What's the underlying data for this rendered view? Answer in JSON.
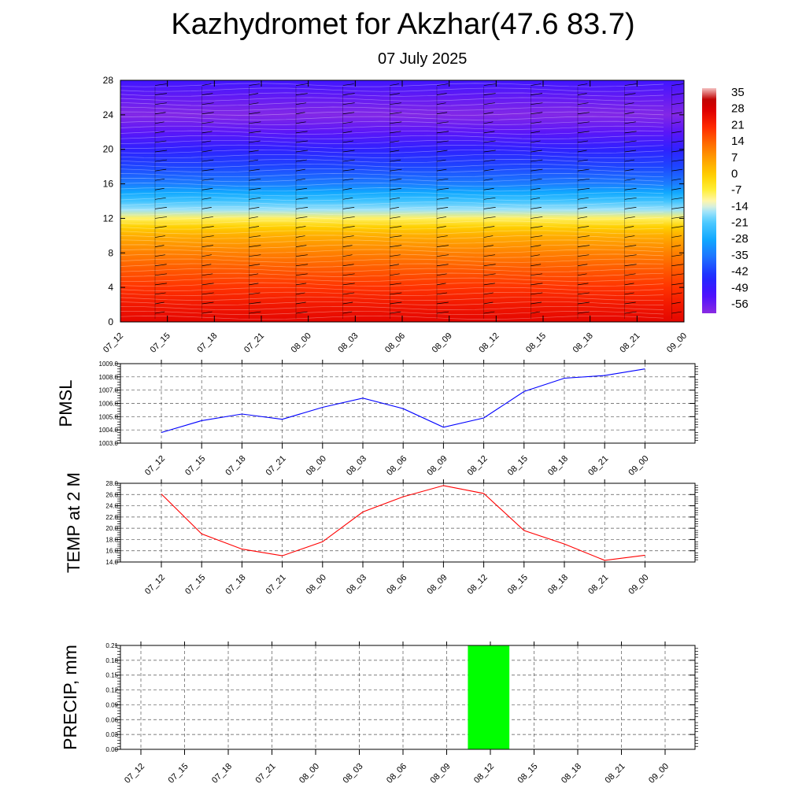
{
  "header": {
    "title": "Kazhydromet for Akzhar(47.6 83.7)",
    "subtitle": "07 July 2025"
  },
  "chart_data": [
    {
      "type": "heatmap",
      "name": "temperature-cross-section",
      "x": [
        "07_12",
        "07_15",
        "07_18",
        "07_21",
        "08_00",
        "08_03",
        "08_06",
        "08_09",
        "08_12",
        "08_15",
        "08_18",
        "08_21",
        "09_00"
      ],
      "y_ticks": [
        "0",
        "4",
        "8",
        "12",
        "16",
        "20",
        "24",
        "28"
      ],
      "ylim": [
        0,
        28
      ],
      "colorbar": {
        "labels": [
          "35",
          "28",
          "21",
          "14",
          "7",
          "0",
          "-7",
          "-14",
          "-21",
          "-28",
          "-35",
          "-42",
          "-49",
          "-56"
        ],
        "range": [
          -60,
          38
        ]
      },
      "temperature_profile": {
        "levels": [
          0,
          2,
          4,
          6,
          8,
          10,
          11,
          12,
          13,
          14,
          15,
          16,
          18,
          20,
          22,
          24,
          26,
          28
        ],
        "values": [
          27,
          24,
          20,
          16,
          11,
          5,
          0,
          -8,
          -16,
          -22,
          -28,
          -34,
          -41,
          -47,
          -54,
          -59,
          -55,
          -50
        ]
      },
      "wind_barbs": true
    },
    {
      "type": "line",
      "name": "pmsl",
      "ylabel": "PMSL",
      "categories": [
        "07_12",
        "07_15",
        "07_18",
        "07_21",
        "08_00",
        "08_03",
        "08_06",
        "08_09",
        "08_12",
        "08_15",
        "08_18",
        "08_21",
        "09_00"
      ],
      "y_ticks": [
        "1003.0",
        "1004.0",
        "1005.0",
        "1006.0",
        "1007.0",
        "1008.0",
        "1009.0"
      ],
      "ylim": [
        1003.0,
        1009.0
      ],
      "values": [
        1003.8,
        1004.7,
        1005.2,
        1004.8,
        1005.7,
        1006.4,
        1005.6,
        1004.2,
        1004.9,
        1006.9,
        1007.9,
        1008.1,
        1008.6
      ],
      "color": "#0000ff",
      "grid": true
    },
    {
      "type": "line",
      "name": "temp-2m",
      "ylabel": "TEMP at 2 M",
      "categories": [
        "07_12",
        "07_15",
        "07_18",
        "07_21",
        "08_00",
        "08_03",
        "08_06",
        "08_09",
        "08_12",
        "08_15",
        "08_18",
        "08_21",
        "09_00"
      ],
      "y_ticks": [
        "14.0",
        "16.0",
        "18.0",
        "20.0",
        "22.0",
        "24.0",
        "26.0",
        "28.0"
      ],
      "ylim": [
        14.0,
        28.0
      ],
      "values": [
        26.1,
        19.0,
        16.3,
        15.1,
        17.6,
        22.9,
        25.6,
        27.6,
        26.2,
        19.6,
        17.2,
        14.3,
        15.2
      ],
      "color": "#ff0000",
      "grid": true
    },
    {
      "type": "bar",
      "name": "precip",
      "ylabel": "PRECIP, mm",
      "categories": [
        "07_12",
        "07_15",
        "07_18",
        "07_21",
        "08_00",
        "08_03",
        "08_06",
        "08_09",
        "08_12",
        "08_15",
        "08_18",
        "08_21",
        "09_00"
      ],
      "y_ticks": [
        "0.00",
        "0.03",
        "0.06",
        "0.09",
        "0.12",
        "0.15",
        "0.18",
        "0.21"
      ],
      "ylim": [
        0,
        0.21
      ],
      "values": [
        0,
        0,
        0,
        0,
        0,
        0,
        0,
        0,
        0.21,
        0,
        0,
        0,
        0
      ],
      "color": "#00ff00",
      "grid": true
    }
  ]
}
